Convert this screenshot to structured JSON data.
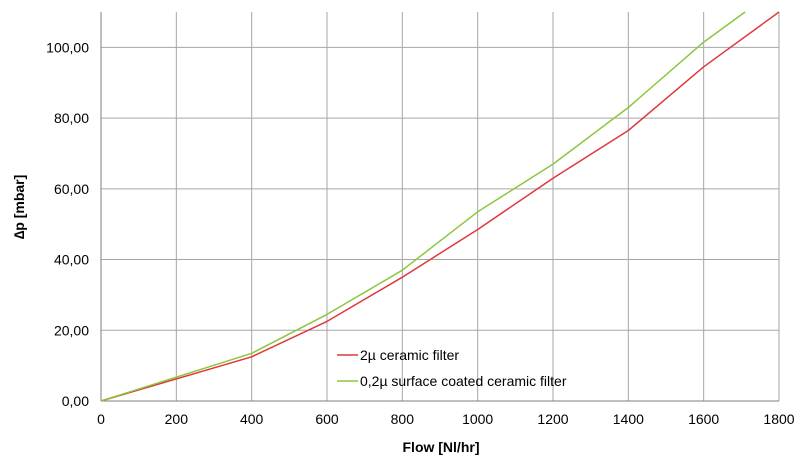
{
  "chart_data": {
    "type": "line",
    "title": "",
    "xlabel": "Flow [Nl/hr]",
    "ylabel": "∆p [mbar]",
    "xlim": [
      0,
      1800
    ],
    "ylim": [
      0,
      110
    ],
    "x_ticks": [
      0,
      200,
      400,
      600,
      800,
      1000,
      1200,
      1400,
      1600,
      1800
    ],
    "x_tick_labels": [
      "0",
      "200",
      "400",
      "600",
      "800",
      "1000",
      "1200",
      "1400",
      "1600",
      "1800"
    ],
    "y_ticks": [
      0,
      20,
      40,
      60,
      80,
      100
    ],
    "y_tick_labels": [
      "0,00",
      "20,00",
      "40,00",
      "60,00",
      "80,00",
      "100,00"
    ],
    "grid": "vertical-and-horizontal",
    "legend_position": "lower-center",
    "series": [
      {
        "name": "2µ ceramic filter",
        "color": "#e0373c",
        "x": [
          0,
          400,
          600,
          800,
          1000,
          1200,
          1400,
          1600,
          1800
        ],
        "y": [
          0,
          12.5,
          22.5,
          35,
          48.5,
          63,
          76.5,
          94.5,
          110
        ]
      },
      {
        "name": "0,2µ surface coated ceramic filter",
        "color": "#8cc63f",
        "x": [
          0,
          400,
          600,
          800,
          1000,
          1200,
          1400,
          1600,
          1710
        ],
        "y": [
          0,
          13.5,
          24.5,
          37,
          53.5,
          67,
          83,
          101.5,
          110
        ]
      }
    ]
  }
}
